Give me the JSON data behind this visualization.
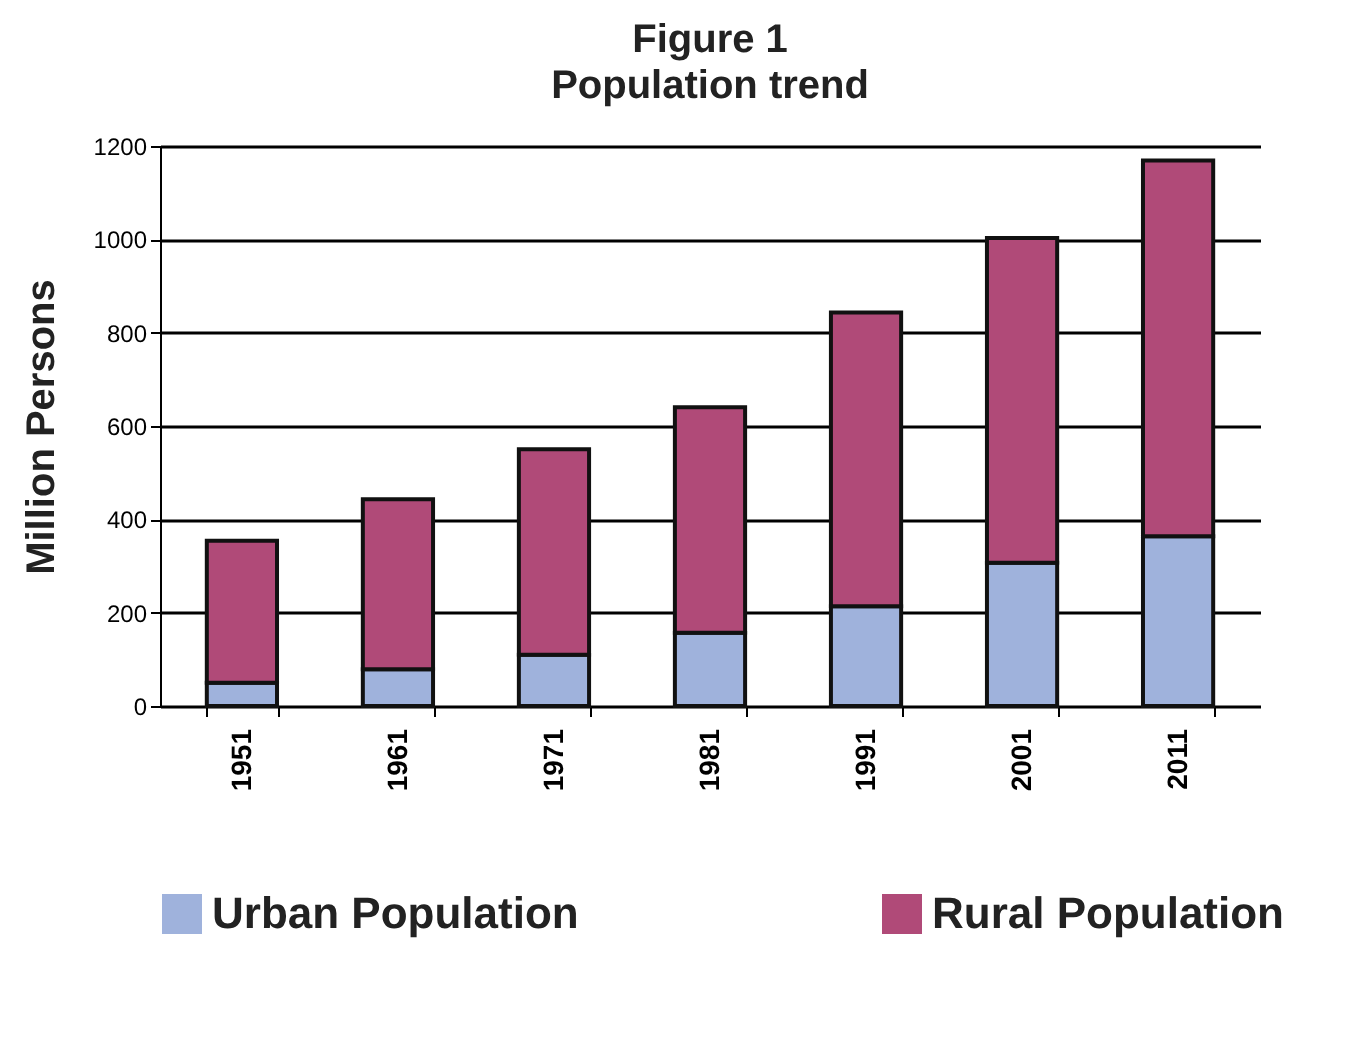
{
  "chart_data": {
    "type": "bar",
    "title": "Figure 1",
    "subtitle": "Population trend",
    "ylabel": "Million Persons",
    "categories": [
      "1951",
      "1961",
      "1971",
      "1981",
      "1991",
      "2001",
      "2011"
    ],
    "stacked": true,
    "series": [
      {
        "name": "Urban Population",
        "color": "#9fb2dc",
        "values": [
          50,
          79,
          110,
          157,
          214,
          307,
          364
        ]
      },
      {
        "name": "Rural Population",
        "color": "#b04a78",
        "values": [
          304,
          364,
          440,
          483,
          629,
          696,
          805
        ]
      }
    ],
    "ylim": [
      0,
      1200
    ],
    "yticks": [
      0,
      200,
      400,
      600,
      800,
      1000,
      1200
    ],
    "grid": "y",
    "legend": "bottom"
  }
}
